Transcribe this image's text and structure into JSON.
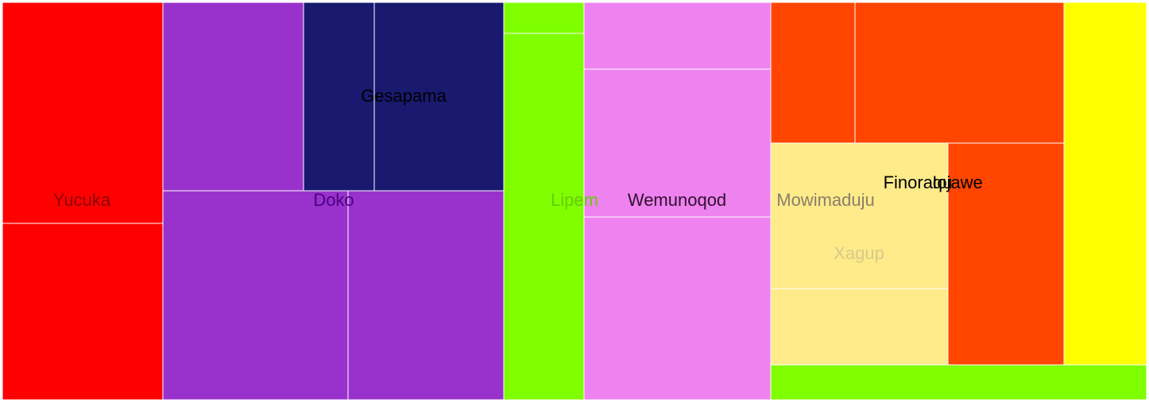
{
  "chart_data": {
    "type": "treemap",
    "groups": [
      {
        "name": "Yucuka",
        "color": "#ff0000",
        "label_color": "#8b0000",
        "leaves": [
          {
            "value": 558
          },
          {
            "value": 450
          }
        ]
      },
      {
        "name": "Doko",
        "color": "#9932cc",
        "label_color": "#4b0082",
        "leaves": [
          {
            "value": 417
          },
          {
            "value": 622
          },
          {
            "value": 525
          }
        ]
      },
      {
        "name": "Gesapama",
        "color": "#191970",
        "label_color": "#000000",
        "leaves": [
          {
            "value": 209
          },
          {
            "value": 384
          }
        ]
      },
      {
        "name": "Lipem",
        "color": "#7fff00",
        "label_color": "#66cc00",
        "leaves": [
          {
            "value": 39
          },
          {
            "value": 461
          }
        ]
      },
      {
        "name": "Wemunoqod",
        "color": "#ee82ee",
        "label_color": "#2f0f2f",
        "leaves": [
          {
            "value": 196
          },
          {
            "value": 438
          },
          {
            "value": 540
          }
        ]
      },
      {
        "name": "Mowimaduju",
        "color": "#ffeb8a",
        "label_color": "#8b7d6b",
        "leaves": [
          {
            "value": 0
          }
        ]
      },
      {
        "name": "Finoraqu",
        "color": "#ff4500",
        "label_color": "#000000",
        "leaves": [
          {
            "value": 185
          },
          {
            "value": 465
          }
        ]
      },
      {
        "name": "Xagup",
        "color": "#ffeb8a",
        "label_color": "#d9c98a",
        "leaves": [
          {
            "value": 410
          },
          {
            "value": 213
          }
        ]
      },
      {
        "name": "Iojawe",
        "color": "#ff4500",
        "label_color": "#000000",
        "leaves": [
          {
            "value": 410
          }
        ]
      },
      {
        "name": "",
        "color": "#ffff00",
        "label_color": "#000000",
        "leaves": [
          {
            "value": 484
          }
        ]
      },
      {
        "name": "",
        "color": "#7fff00",
        "label_color": "#000000",
        "leaves": [
          {
            "value": 224
          }
        ]
      }
    ]
  }
}
